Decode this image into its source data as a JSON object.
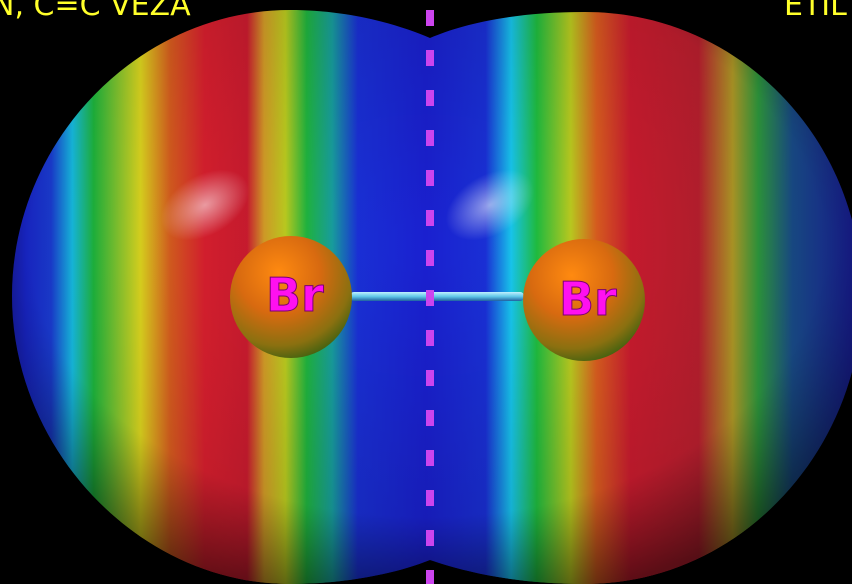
{
  "captions": {
    "left": "N, C=C VEZA",
    "right": "ETIL"
  },
  "molecule": {
    "atoms": [
      {
        "label": "Br"
      },
      {
        "label": "Br"
      }
    ],
    "bond": "single"
  },
  "colors": {
    "background": "#000000",
    "caption_text": "#ffff2a",
    "atom_label": "#ff10f0",
    "symmetry_line": "#cc44ee",
    "potential_scale": [
      "#1020d0",
      "#18c8f0",
      "#20c040",
      "#e8e020",
      "#e02020"
    ]
  }
}
